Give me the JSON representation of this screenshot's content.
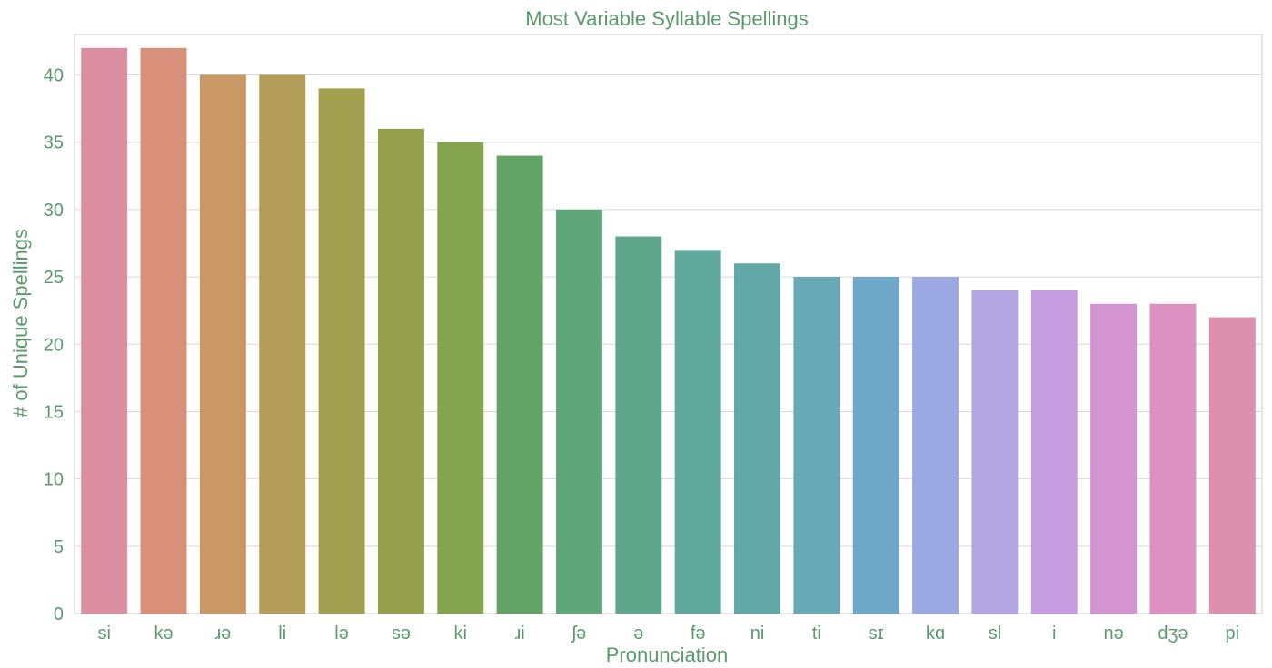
{
  "chart_data": {
    "type": "bar",
    "title": "Most Variable Syllable Spellings",
    "xlabel": "Pronunciation",
    "ylabel": "# of Unique Spellings",
    "categories": [
      "si",
      "kə",
      "ɹə",
      "li",
      "lə",
      "sə",
      "ki",
      "ɹi",
      "ʃə",
      "ə",
      "fə",
      "ni",
      "ti",
      "sɪ",
      "kɑ",
      "sl",
      "i",
      "nə",
      "dʒə",
      "pi"
    ],
    "values": [
      42,
      42,
      40,
      40,
      39,
      36,
      35,
      34,
      30,
      28,
      27,
      26,
      25,
      25,
      25,
      24,
      24,
      23,
      23,
      22
    ],
    "ylim": [
      0,
      43
    ],
    "yticks": [
      0,
      5,
      10,
      15,
      20,
      25,
      30,
      35,
      40
    ],
    "grid": true,
    "colors": [
      "#dd8fa2",
      "#d9907a",
      "#c99865",
      "#b49d58",
      "#a29f4f",
      "#959f4c",
      "#84a44f",
      "#63a366",
      "#5fa67a",
      "#5fa78c",
      "#60a89c",
      "#62a8a8",
      "#67a9b5",
      "#6ea8c9",
      "#9ca8e1",
      "#b3a6e3",
      "#c59de0",
      "#d494d2",
      "#dc91c0",
      "#dd8fae"
    ],
    "text_color": "#5a9a6e"
  }
}
